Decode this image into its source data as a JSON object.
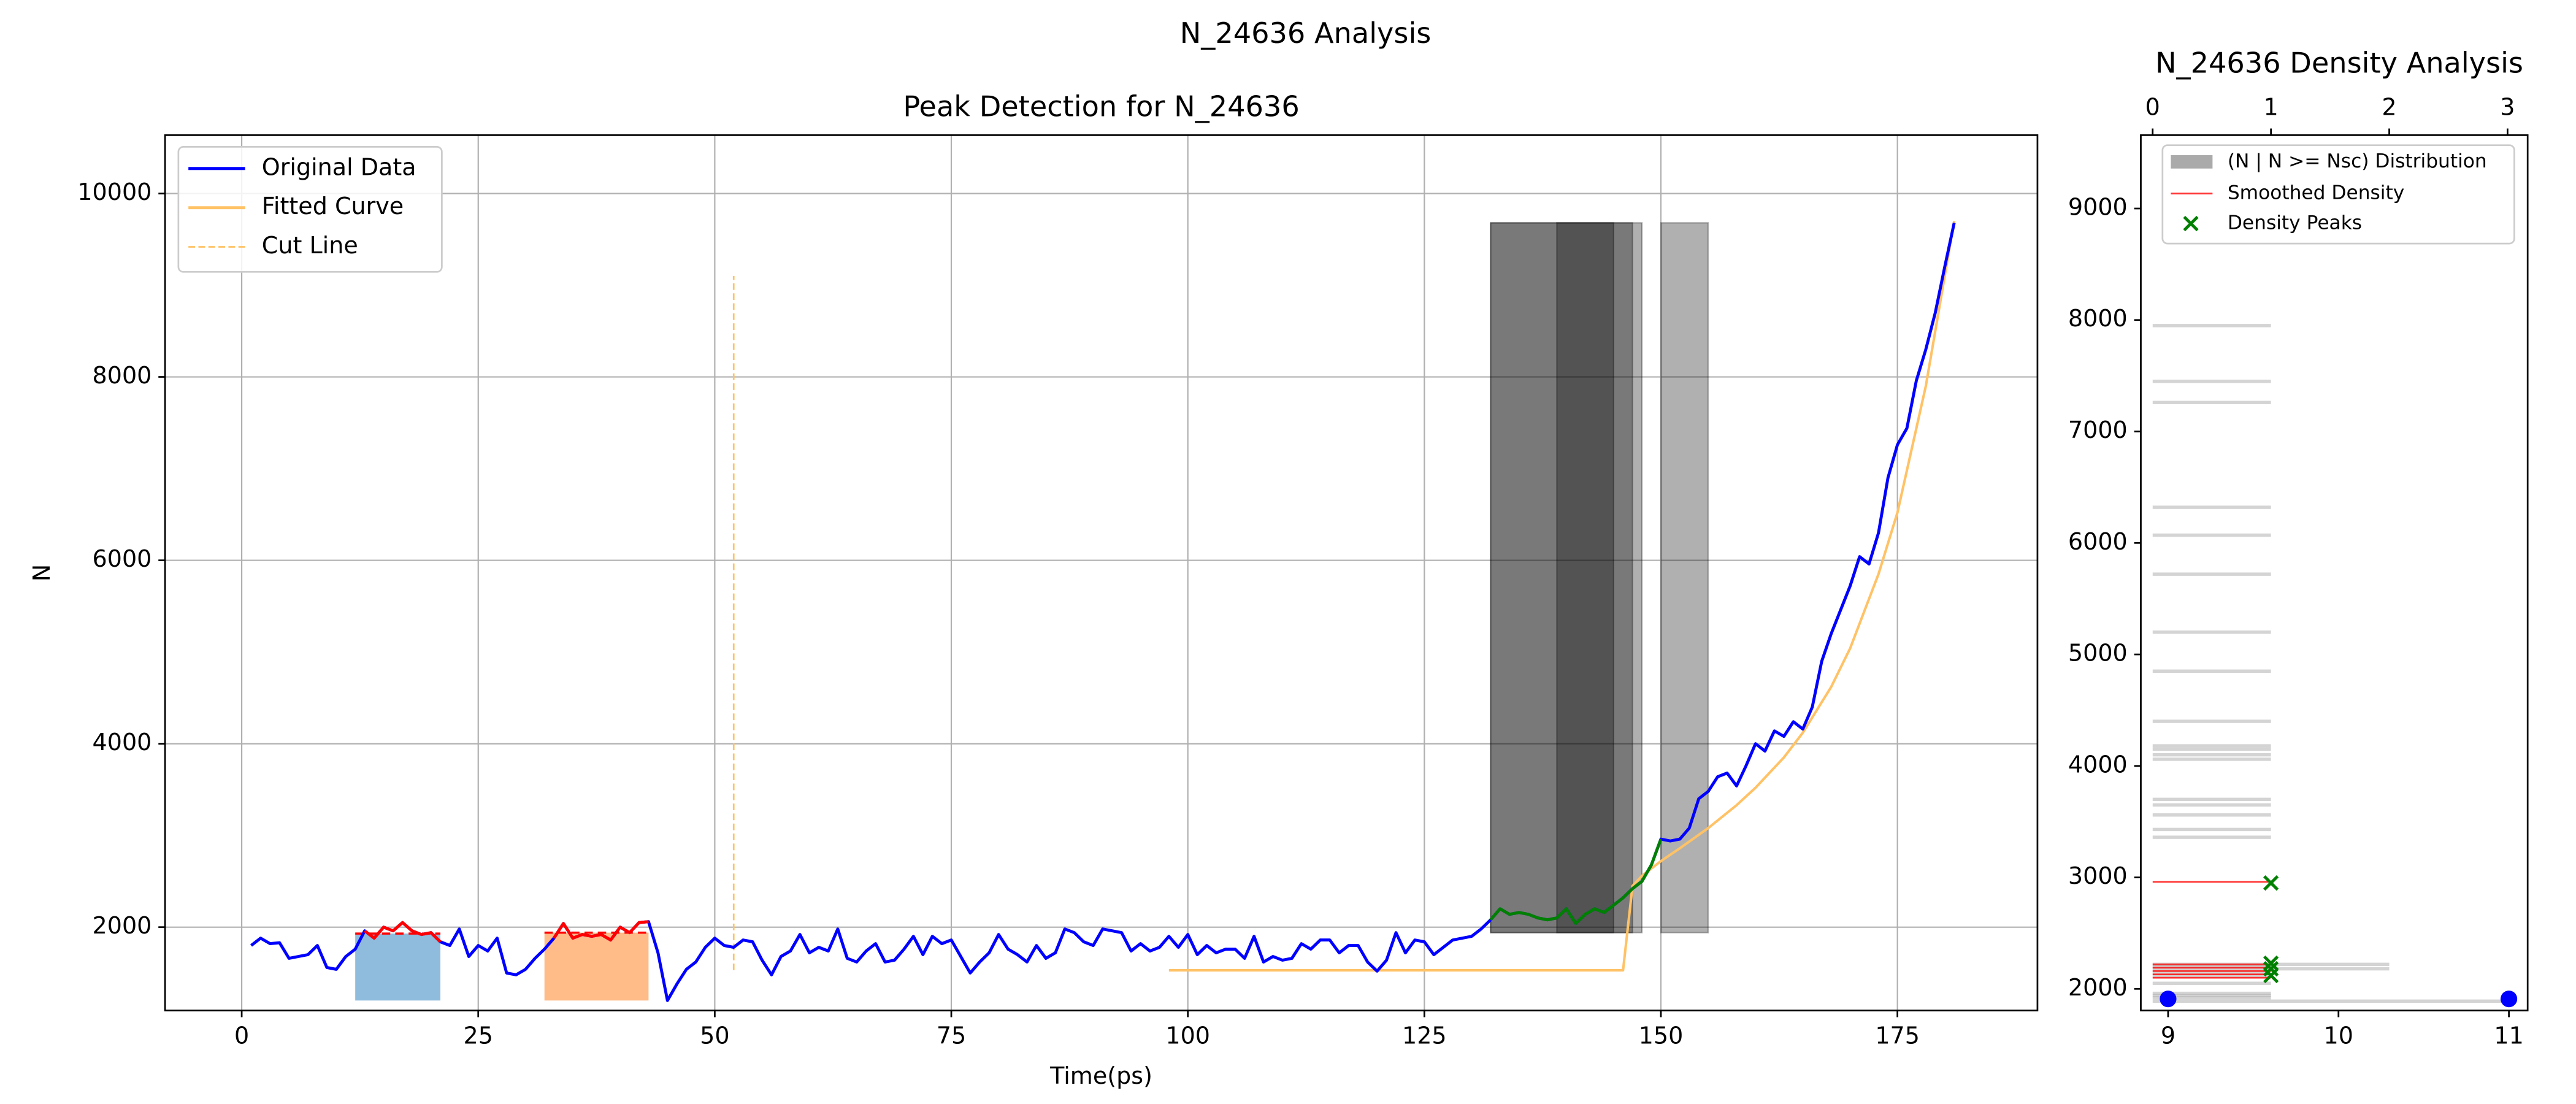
{
  "suptitle": "N_24636 Analysis",
  "chart_data": [
    {
      "type": "line",
      "title": "Peak Detection for N_24636",
      "xlabel": "Time(ps)",
      "ylabel": "N",
      "xlim": [
        -8.1,
        189.8
      ],
      "ylim": [
        1091,
        10636
      ],
      "xticks": [
        0,
        25,
        50,
        75,
        100,
        125,
        150,
        175
      ],
      "yticks": [
        2000,
        4000,
        6000,
        8000,
        10000
      ],
      "grid": true,
      "legend": "upper left",
      "series": [
        {
          "name": "Original Data",
          "color": "#0000ff",
          "x": [
            1,
            2,
            3,
            4,
            5,
            6,
            7,
            8,
            9,
            10,
            11,
            12,
            13,
            14,
            15,
            16,
            17,
            18,
            19,
            20,
            21,
            22,
            23,
            24,
            25,
            26,
            27,
            28,
            29,
            30,
            31,
            32,
            33,
            34,
            35,
            36,
            37,
            38,
            39,
            40,
            41,
            42,
            43,
            44,
            45,
            46,
            47,
            48,
            49,
            50,
            51,
            52,
            53,
            54,
            55,
            56,
            57,
            58,
            59,
            60,
            61,
            62,
            63,
            64,
            65,
            66,
            67,
            68,
            69,
            70,
            71,
            72,
            73,
            74,
            75,
            76,
            77,
            78,
            79,
            80,
            81,
            82,
            83,
            84,
            85,
            86,
            87,
            88,
            89,
            90,
            91,
            92,
            93,
            94,
            95,
            96,
            97,
            98,
            99,
            100,
            101,
            102,
            103,
            104,
            105,
            106,
            107,
            108,
            109,
            110,
            111,
            112,
            113,
            114,
            115,
            116,
            117,
            118,
            119,
            120,
            121,
            122,
            123,
            124,
            125,
            126,
            127,
            128,
            129,
            130,
            131,
            132,
            133,
            134,
            135,
            136,
            137,
            138,
            139,
            140,
            141,
            142,
            143,
            144,
            145,
            146,
            147,
            148,
            149,
            150,
            151,
            152,
            153,
            154,
            155,
            156,
            157,
            158,
            159,
            160,
            161,
            162,
            163,
            164,
            165,
            166,
            167,
            168,
            169,
            170,
            171,
            172,
            173,
            174,
            175,
            176,
            177,
            178,
            179,
            180,
            181
          ],
          "values": [
            1800,
            1880,
            1820,
            1830,
            1660,
            1680,
            1700,
            1800,
            1560,
            1540,
            1680,
            1760,
            1960,
            1880,
            2000,
            1960,
            2050,
            1960,
            1920,
            1940,
            1840,
            1800,
            1980,
            1680,
            1800,
            1740,
            1880,
            1500,
            1480,
            1540,
            1660,
            1760,
            1880,
            2040,
            1880,
            1920,
            1900,
            1920,
            1860,
            2000,
            1940,
            2050,
            2060,
            1720,
            1200,
            1380,
            1540,
            1620,
            1780,
            1880,
            1800,
            1780,
            1860,
            1840,
            1640,
            1480,
            1680,
            1740,
            1920,
            1720,
            1780,
            1740,
            1980,
            1660,
            1620,
            1740,
            1820,
            1620,
            1640,
            1760,
            1900,
            1700,
            1900,
            1820,
            1860,
            1680,
            1500,
            1620,
            1720,
            1920,
            1760,
            1700,
            1620,
            1800,
            1660,
            1720,
            1980,
            1940,
            1840,
            1800,
            1980,
            1960,
            1940,
            1740,
            1820,
            1740,
            1780,
            1900,
            1780,
            1920,
            1700,
            1800,
            1720,
            1760,
            1760,
            1660,
            1900,
            1620,
            1680,
            1640,
            1660,
            1820,
            1760,
            1860,
            1860,
            1720,
            1800,
            1800,
            1620,
            1520,
            1640,
            1940,
            1720,
            1860,
            1840,
            1700,
            1780,
            1860,
            1880,
            1900,
            1980,
            2080,
            2200,
            2140,
            2160,
            2140,
            2100,
            2080,
            2100,
            2200,
            2040,
            2140,
            2200,
            2160,
            2240,
            2320,
            2420,
            2500,
            2680,
            2960,
            2940,
            2960,
            3080,
            3400,
            3480,
            3640,
            3680,
            3540,
            3760,
            4000,
            3920,
            4140,
            4080,
            4240,
            4160,
            4400,
            4900,
            5200,
            5460,
            5720,
            6040,
            5960,
            6300,
            6900,
            7260,
            7440,
            7960,
            8300,
            8700,
            9200,
            9680
          ]
        },
        {
          "name": "Fitted Curve",
          "color": "#ffc266",
          "x": [
            98,
            146,
            147,
            148,
            150,
            152,
            155,
            158,
            160,
            163,
            165,
            168,
            170,
            173,
            175,
            178,
            181
          ],
          "values": [
            1530,
            1530,
            2450,
            2560,
            2720,
            2860,
            3080,
            3330,
            3520,
            3850,
            4120,
            4620,
            5040,
            5850,
            6520,
            7900,
            9700
          ]
        }
      ],
      "cut_line": {
        "name": "Cut Line",
        "color": "#ffc266",
        "x": 52,
        "y0": 1530,
        "y1": 9100
      },
      "highlight_segments": [
        {
          "start": 13,
          "end": 21,
          "color": "#ff0000"
        },
        {
          "start": 33,
          "end": 43,
          "color": "#ff0000"
        },
        {
          "start": 132,
          "end": 150,
          "color": "#008000"
        }
      ],
      "peak_regions": [
        {
          "x0": 12,
          "x1": 21,
          "bottom": 1200,
          "top": 1930,
          "color": "#8fbcdc",
          "line_color": "#ff0000"
        },
        {
          "x0": 32,
          "x1": 43,
          "bottom": 1200,
          "top": 1940,
          "color": "#ffbb88",
          "line_color": "#ff0000"
        }
      ],
      "shaded_windows": [
        {
          "x0": 132,
          "x1": 148,
          "bottom": 1940,
          "top": 9680
        },
        {
          "x0": 132,
          "x1": 147,
          "bottom": 1940,
          "top": 9680
        },
        {
          "x0": 139,
          "x1": 145,
          "bottom": 1940,
          "top": 9680
        },
        {
          "x0": 150,
          "x1": 155,
          "bottom": 1940,
          "top": 9680
        }
      ]
    },
    {
      "type": "density",
      "title": "N_24636 Density Analysis",
      "xlim": [
        -0.1,
        3.17
      ],
      "xticks": [
        0,
        1,
        2,
        3
      ],
      "x2lim": [
        8.84,
        11.11
      ],
      "x2ticks": [
        9,
        10,
        11
      ],
      "ylim": [
        1806,
        9658
      ],
      "yticks": [
        2000,
        3000,
        4000,
        5000,
        6000,
        7000,
        8000,
        9000
      ],
      "legend": "upper left",
      "distribution": {
        "name": "(N | N >= Nsc) Distribution",
        "color": "#aaaaaa",
        "levels": [
          7950,
          7450,
          7260,
          6320,
          6070,
          5720,
          5200,
          4850,
          4400,
          4180,
          4150,
          4100,
          4060,
          3700,
          3650,
          3560,
          3430,
          3360,
          2220,
          2200,
          2180,
          2150,
          2120,
          2050,
          1960,
          1940,
          1920,
          1890
        ],
        "counts": [
          1,
          1,
          1,
          1,
          1,
          1,
          1,
          1,
          1,
          1,
          1,
          1,
          1,
          1,
          1,
          1,
          1,
          1,
          2,
          1,
          2,
          1,
          1,
          1,
          1,
          1,
          1,
          3
        ]
      },
      "smoothed_density": {
        "name": "Smoothed Density",
        "color": "#ff0000",
        "levels": [
          2960,
          2220,
          2190,
          2160,
          2130,
          2100
        ],
        "values": [
          1,
          1,
          1,
          1,
          1,
          1
        ]
      },
      "peaks": {
        "name": "Density Peaks",
        "color": "#008000",
        "x": [
          1,
          1,
          1,
          1
        ],
        "y": [
          2950,
          2230,
          2180,
          2120
        ]
      },
      "points": {
        "color": "#0000ff",
        "axis": "x2",
        "x": [
          9,
          11
        ],
        "y": [
          1910,
          1910
        ]
      }
    }
  ]
}
